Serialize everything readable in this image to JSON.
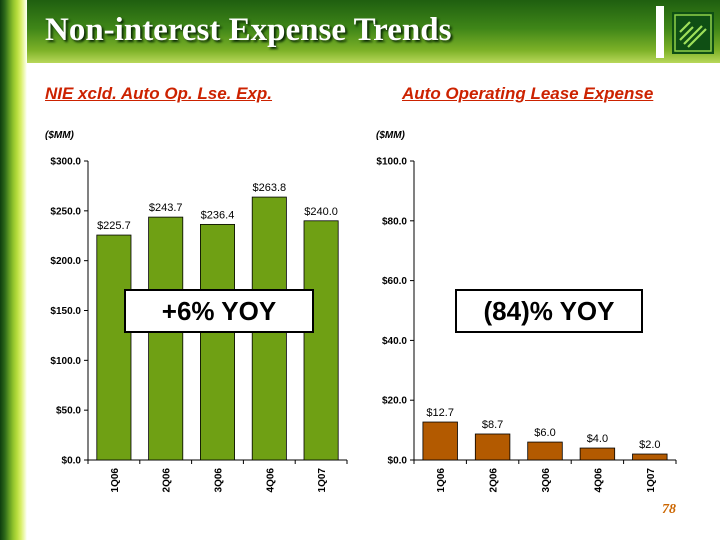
{
  "slide": {
    "title": "Non-interest Expense Trends",
    "page_number": "78",
    "colors": {
      "header": "#3f8618",
      "accent_text": "#cc2200",
      "page_number": "#cc6600"
    }
  },
  "left": {
    "subtitle": "NIE xcld. Auto Op. Lse. Exp.",
    "unit": "($MM)",
    "callout": "+6% YOY"
  },
  "right": {
    "subtitle": "Auto Operating Lease Expense",
    "unit": "($MM)",
    "callout": "(84)% YOY"
  },
  "chart_data": [
    {
      "type": "bar",
      "categories": [
        "1Q06",
        "2Q06",
        "3Q06",
        "4Q06",
        "1Q07"
      ],
      "values": [
        225.7,
        243.7,
        236.4,
        263.8,
        240.0
      ],
      "data_labels": [
        "$225.7",
        "$243.7",
        "$236.4",
        "$263.8",
        "$240.0"
      ],
      "ylim": [
        0,
        300
      ],
      "yticks": [
        0,
        50,
        100,
        150,
        200,
        250,
        300
      ],
      "ytick_labels": [
        "$0.0",
        "$50.0",
        "$100.0",
        "$150.0",
        "$200.0",
        "$250.0",
        "$300.0"
      ],
      "bar_color": "#6fa014",
      "grid": false
    },
    {
      "type": "bar",
      "categories": [
        "1Q06",
        "2Q06",
        "3Q06",
        "4Q06",
        "1Q07"
      ],
      "values": [
        12.7,
        8.7,
        6.0,
        4.0,
        2.0
      ],
      "data_labels": [
        "$12.7",
        "$8.7",
        "$6.0",
        "$4.0",
        "$2.0"
      ],
      "ylim": [
        0,
        100
      ],
      "yticks": [
        0,
        20,
        40,
        60,
        80,
        100
      ],
      "ytick_labels": [
        "$0.0",
        "$20.0",
        "$40.0",
        "$60.0",
        "$80.0",
        "$100.0"
      ],
      "bar_color": "#b35a00",
      "grid": false
    }
  ]
}
